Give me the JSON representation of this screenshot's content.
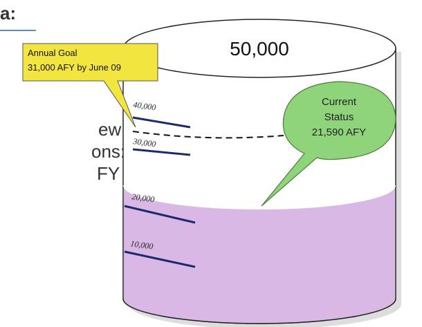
{
  "side_text": [
    "a:",
    "ew",
    "ons:",
    "FY"
  ],
  "cylinder": {
    "capacity": "50,000",
    "scale": [
      "40,000",
      "30,000",
      "20,000",
      "10,000"
    ]
  },
  "goal_callout": {
    "title": "Annual Goal",
    "text": "31,000 AFY by June  09"
  },
  "status_callout": {
    "lines": [
      "Current",
      "Status",
      "21,590 AFY"
    ]
  }
}
